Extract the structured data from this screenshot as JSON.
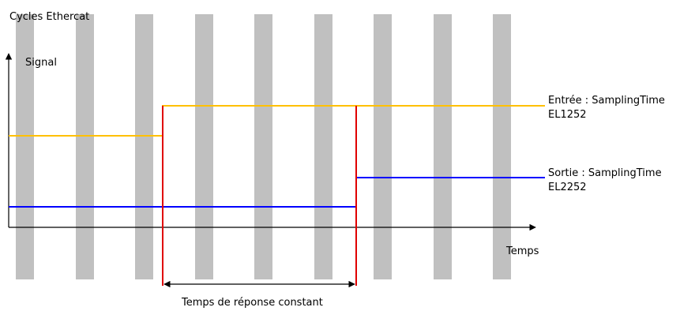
{
  "labels": {
    "cycles": "Cycles Ethercat",
    "signal": "Signal",
    "time": "Temps",
    "response": "Temps de réponse constant",
    "input_line1": "Entrée : SamplingTime",
    "input_line2": "EL1252",
    "output_line1": "Sortie : SamplingTime",
    "output_line2": "EL2252"
  },
  "colors": {
    "cycle_bar": "#c0c0c0",
    "input_signal": "#ffc000",
    "output_signal": "#0000ff",
    "marker": "#e00000",
    "axis": "#000000"
  }
}
